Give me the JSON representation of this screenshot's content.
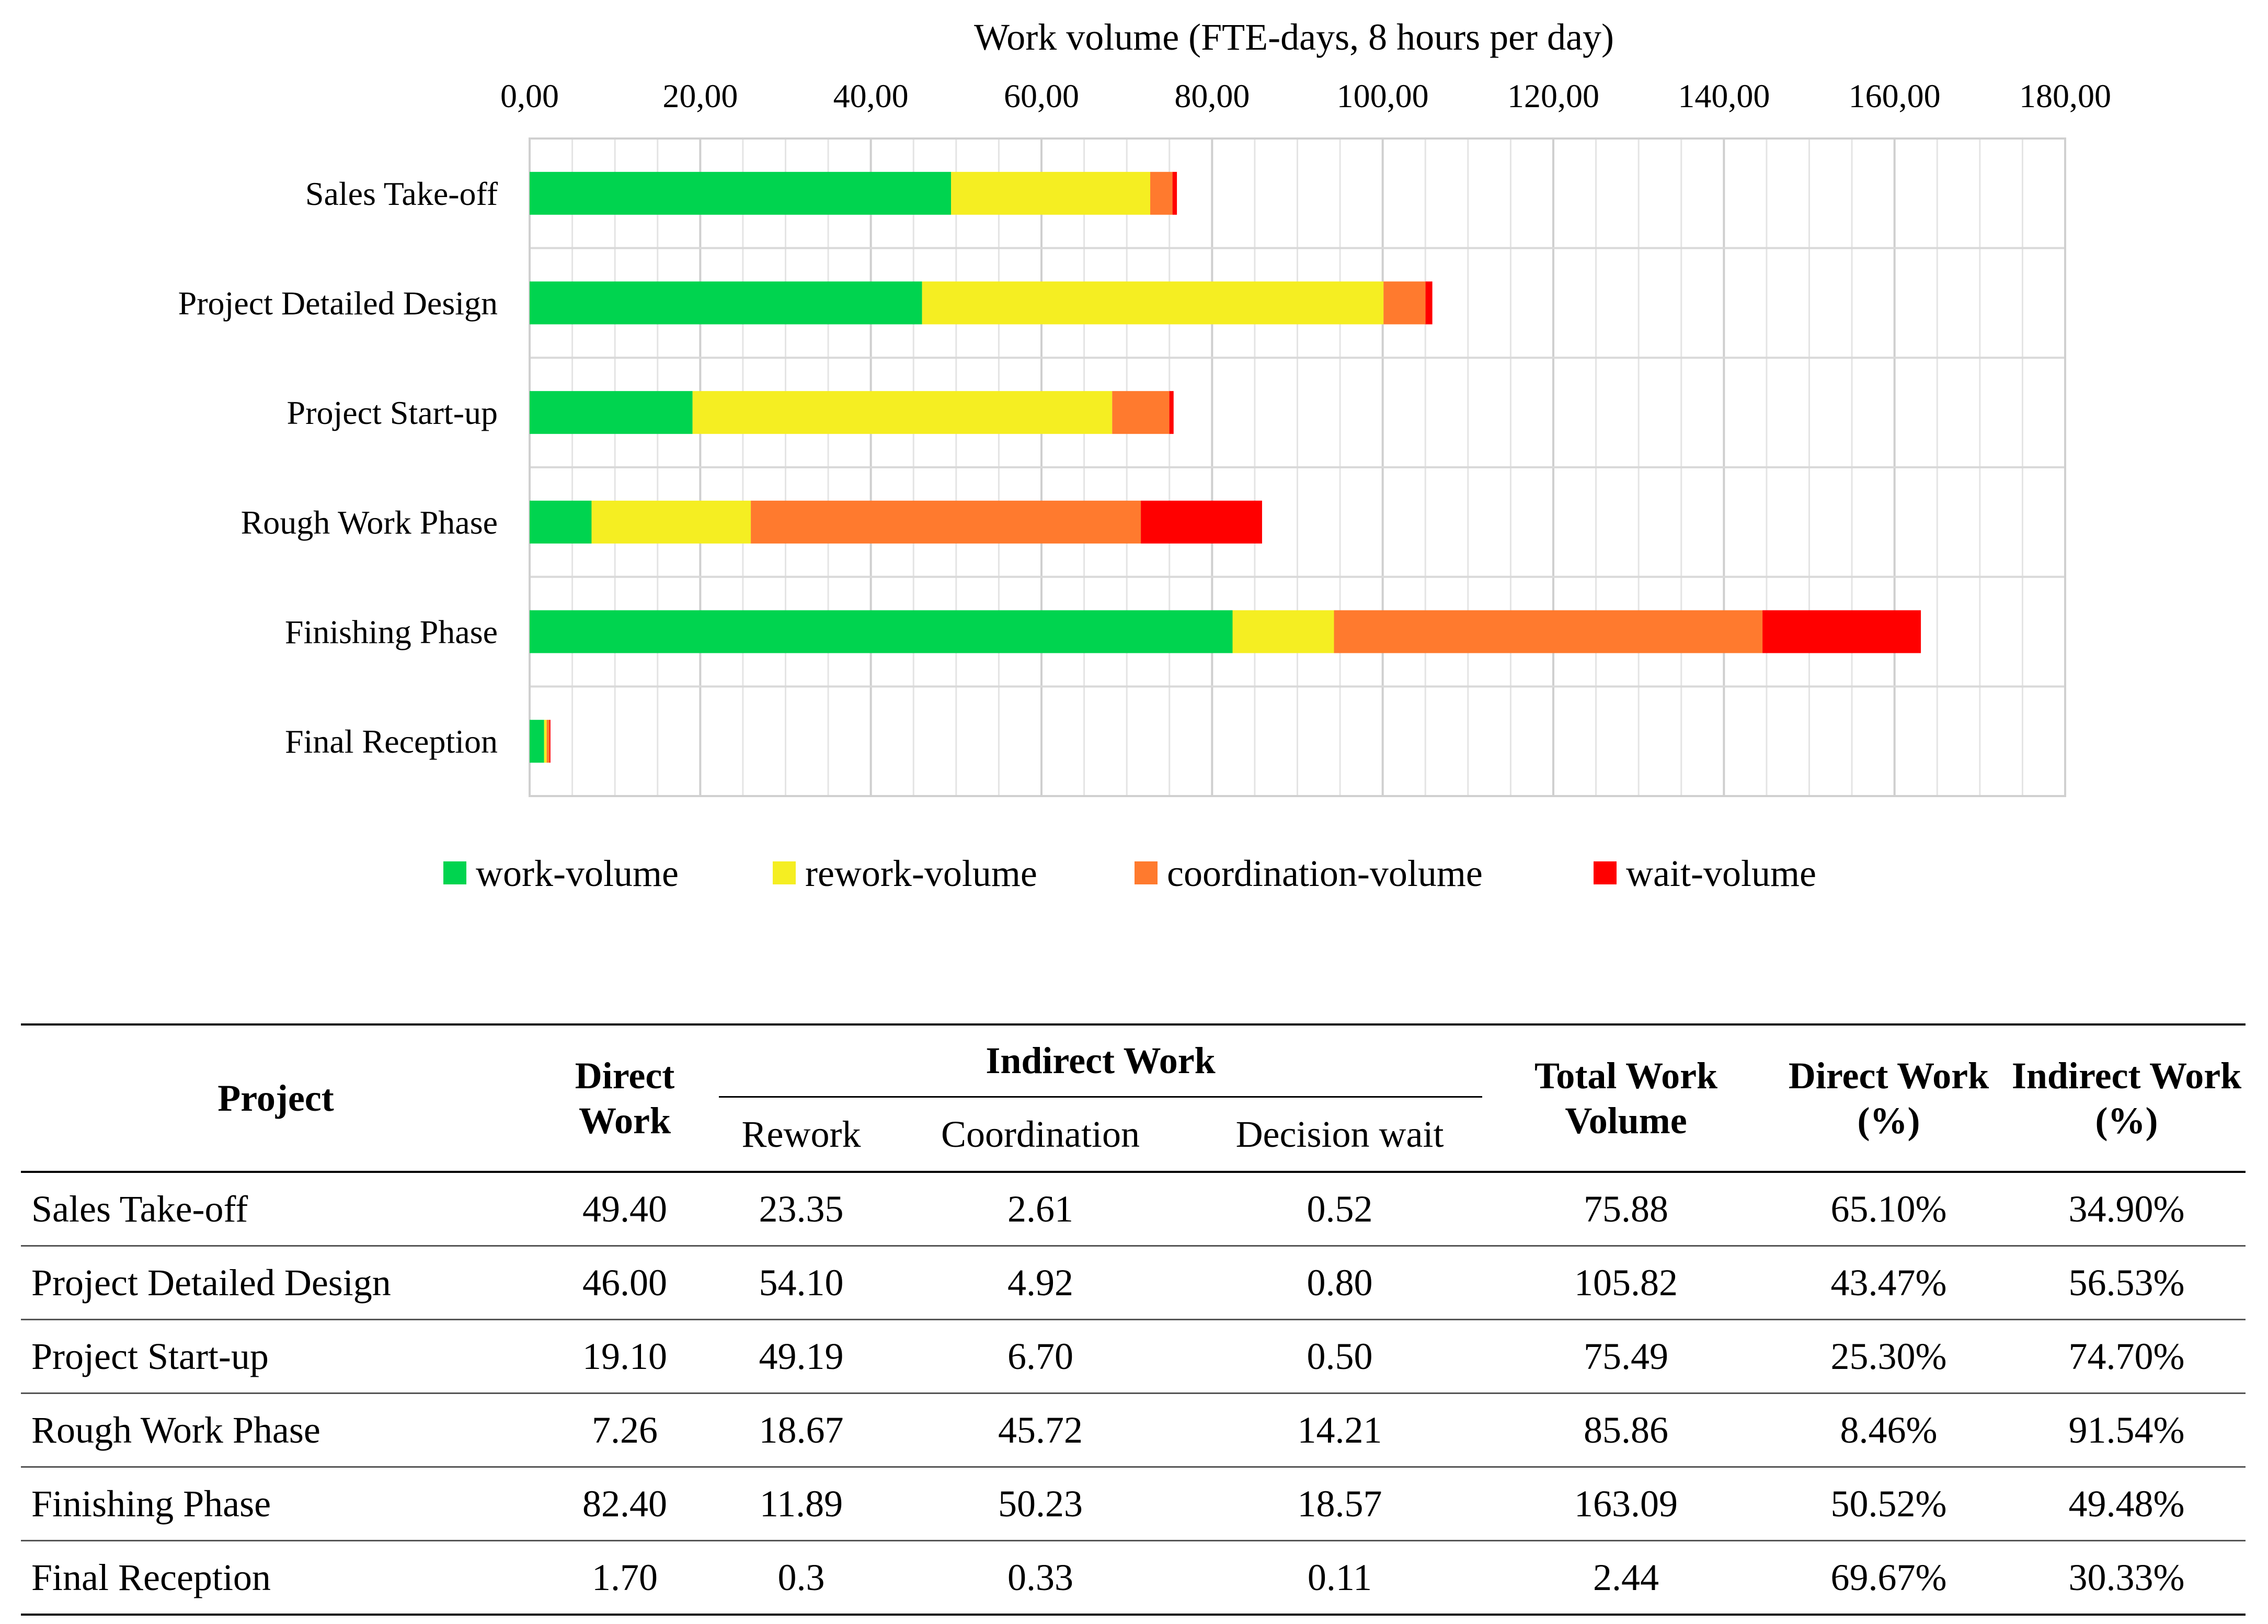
{
  "chart_data": {
    "type": "bar",
    "orientation": "horizontal",
    "stacked": true,
    "title": "Work volume (FTE-days, 8 hours per day)",
    "xlabel": "Work volume (FTE-days, 8 hours per day)",
    "xlim": [
      0,
      180
    ],
    "xticks": [
      0,
      20,
      40,
      60,
      80,
      100,
      120,
      140,
      160,
      180
    ],
    "xtick_labels": [
      "0,00",
      "20,00",
      "40,00",
      "60,00",
      "80,00",
      "100,00",
      "120,00",
      "140,00",
      "160,00",
      "180,00"
    ],
    "categories": [
      "Sales Take-off",
      "Project Detailed Design",
      "Project Start-up",
      "Rough Work Phase",
      "Finishing Phase",
      "Final Reception"
    ],
    "series": [
      {
        "name": "work-volume",
        "color": "#00d44f",
        "values": [
          49.4,
          46.0,
          19.1,
          7.26,
          82.4,
          1.7
        ]
      },
      {
        "name": "rework-volume",
        "color": "#f5ee22",
        "values": [
          23.35,
          54.1,
          49.19,
          18.67,
          11.89,
          0.3
        ]
      },
      {
        "name": "coordination-volume",
        "color": "#ff7a2e",
        "values": [
          2.61,
          4.92,
          6.7,
          45.72,
          50.23,
          0.33
        ]
      },
      {
        "name": "wait-volume",
        "color": "#ff0000",
        "values": [
          0.52,
          0.8,
          0.5,
          14.21,
          18.57,
          0.11
        ]
      }
    ],
    "grid": true,
    "legend_position": "bottom"
  },
  "table": {
    "headers": {
      "project": "Project",
      "direct_work": "Direct Work",
      "indirect_work": "Indirect Work",
      "rework": "Rework",
      "coordination": "Coordination",
      "decision_wait": "Decision wait",
      "total": "Total Work Volume",
      "direct_pct": "Direct Work (%)",
      "indirect_pct": "Indirect Work (%)"
    },
    "rows": [
      [
        "Sales Take-off",
        "49.40",
        "23.35",
        "2.61",
        "0.52",
        "75.88",
        "65.10%",
        "34.90%"
      ],
      [
        "Project Detailed Design",
        "46.00",
        "54.10",
        "4.92",
        "0.80",
        "105.82",
        "43.47%",
        "56.53%"
      ],
      [
        "Project Start-up",
        "19.10",
        "49.19",
        "6.70",
        "0.50",
        "75.49",
        "25.30%",
        "74.70%"
      ],
      [
        "Rough Work Phase",
        "7.26",
        "18.67",
        "45.72",
        "14.21",
        "85.86",
        "8.46%",
        "91.54%"
      ],
      [
        "Finishing Phase",
        "82.40",
        "11.89",
        "50.23",
        "18.57",
        "163.09",
        "50.52%",
        "49.48%"
      ],
      [
        "Final Reception",
        "1.70",
        "0.3",
        "0.33",
        "0.11",
        "2.44",
        "69.67%",
        "30.33%"
      ]
    ]
  }
}
